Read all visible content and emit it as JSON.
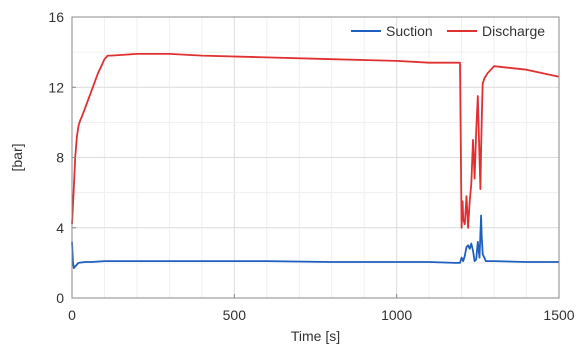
{
  "chart_data": {
    "type": "line",
    "title": "",
    "xlabel": "Time [s]",
    "ylabel": "[bar]",
    "xlim": [
      0,
      1500
    ],
    "ylim": [
      0,
      16
    ],
    "xticks": [
      0,
      500,
      1000,
      1500
    ],
    "yticks": [
      0,
      4,
      8,
      12,
      16
    ],
    "grid": true,
    "legend_position": "top-right",
    "series": [
      {
        "name": "Suction",
        "color": "#1f5fbf",
        "x": [
          0,
          3,
          6,
          10,
          20,
          40,
          60,
          100,
          200,
          400,
          600,
          800,
          1000,
          1100,
          1180,
          1195,
          1200,
          1205,
          1210,
          1215,
          1220,
          1225,
          1230,
          1235,
          1240,
          1245,
          1250,
          1255,
          1260,
          1262,
          1265,
          1270,
          1275,
          1280,
          1300,
          1400,
          1500
        ],
        "y": [
          3.2,
          2.0,
          1.7,
          1.8,
          2.0,
          2.05,
          2.05,
          2.1,
          2.1,
          2.1,
          2.1,
          2.05,
          2.05,
          2.05,
          2.0,
          2.0,
          2.3,
          2.1,
          2.4,
          2.9,
          3.0,
          2.8,
          3.1,
          2.7,
          2.1,
          2.2,
          3.2,
          2.3,
          4.7,
          3.5,
          2.5,
          2.3,
          2.1,
          2.1,
          2.1,
          2.05,
          2.05
        ]
      },
      {
        "name": "Discharge",
        "color": "#e03030",
        "x": [
          0,
          5,
          10,
          15,
          20,
          25,
          30,
          40,
          60,
          80,
          100,
          110,
          120,
          200,
          300,
          400,
          600,
          800,
          1000,
          1100,
          1195,
          1198,
          1200,
          1203,
          1205,
          1210,
          1215,
          1220,
          1225,
          1230,
          1235,
          1240,
          1245,
          1250,
          1255,
          1258,
          1260,
          1263,
          1265,
          1270,
          1280,
          1300,
          1400,
          1500
        ],
        "y": [
          4.2,
          6.0,
          8.0,
          9.2,
          9.8,
          10.1,
          10.3,
          10.8,
          11.8,
          12.8,
          13.6,
          13.8,
          13.8,
          13.9,
          13.9,
          13.8,
          13.7,
          13.6,
          13.5,
          13.4,
          13.4,
          7.5,
          4.0,
          5.5,
          4.5,
          4.2,
          5.8,
          4.0,
          5.5,
          6.5,
          9.0,
          6.8,
          9.5,
          11.5,
          8.0,
          6.2,
          8.5,
          11.0,
          12.2,
          12.5,
          12.8,
          13.2,
          13.0,
          12.6
        ]
      }
    ]
  }
}
